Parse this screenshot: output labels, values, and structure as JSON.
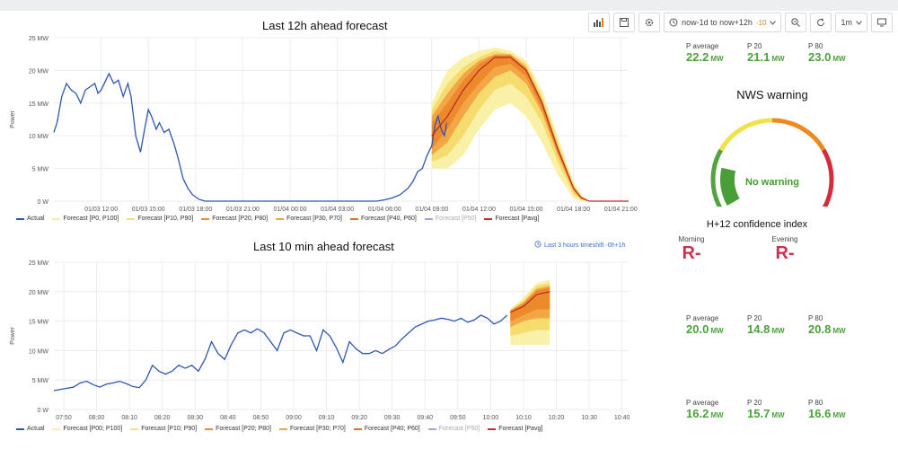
{
  "toolbar": {
    "time_range": "now-1d to now+12h",
    "time_range_badge": "-10",
    "refresh_interval": "1m"
  },
  "legend": [
    {
      "label": "Actual",
      "color": "#2f56b0",
      "faded": false
    },
    {
      "label": "Forecast [P0, P100]",
      "color": "#f7f0a0",
      "faded": false
    },
    {
      "label": "Forecast [P10, P90]",
      "color": "#f5e07a",
      "faded": false
    },
    {
      "label": "Forecast [P20, P80]",
      "color": "#f08a2a",
      "faded": false
    },
    {
      "label": "Forecast [P30, P70]",
      "color": "#f2a444",
      "faded": false
    },
    {
      "label": "Forecast [P40, P60]",
      "color": "#e6701e",
      "faded": false
    },
    {
      "label": "Forecast [P50]",
      "color": "#b89ad8",
      "faded": true
    },
    {
      "label": "Forecast [Pavg]",
      "color": "#cc2a2a",
      "faded": false
    }
  ],
  "legend_bottom": [
    {
      "label": "Actual",
      "color": "#2f56b0",
      "faded": false
    },
    {
      "label": "Forecast [P00; P100]",
      "color": "#f7f0a0",
      "faded": false
    },
    {
      "label": "Forecast [P10; P90]",
      "color": "#f5e07a",
      "faded": false
    },
    {
      "label": "Forecast [P20; P80]",
      "color": "#f08a2a",
      "faded": false
    },
    {
      "label": "Forecast [P30; P70]",
      "color": "#f2a444",
      "faded": false
    },
    {
      "label": "Forecast [P40; P60]",
      "color": "#e6701e",
      "faded": false
    },
    {
      "label": "Forecast [P50]",
      "color": "#b89ad8",
      "faded": true
    },
    {
      "label": "Forecast [Pavg]",
      "color": "#cc2a2a",
      "faded": false
    }
  ],
  "chart_data": [
    {
      "type": "area",
      "title": "Last 12h ahead forecast",
      "ylabel": "Power",
      "y_ticks": [
        "0 W",
        "5 MW",
        "10 MW",
        "15 MW",
        "20 MW",
        "25 MW"
      ],
      "ylim": [
        0,
        25
      ],
      "x_ticks": [
        "01/03 12:00",
        "01/03 15:00",
        "01/03 18:00",
        "01/03 21:00",
        "01/04 00:00",
        "01/04 03:00",
        "01/04 06:00",
        "01/04 09:00",
        "01/04 12:00",
        "01/04 15:00",
        "01/04 18:00",
        "01/04 21:00"
      ],
      "x_unit": "hours since 01/03 12:00",
      "xlim": [
        -3,
        33.5
      ],
      "actual": [
        [
          -3,
          10.5
        ],
        [
          -2.8,
          12
        ],
        [
          -2.5,
          16
        ],
        [
          -2.2,
          18
        ],
        [
          -1.9,
          17
        ],
        [
          -1.6,
          16.5
        ],
        [
          -1.3,
          15
        ],
        [
          -1,
          17
        ],
        [
          -0.7,
          17.5
        ],
        [
          -0.4,
          18
        ],
        [
          -0.2,
          16.5
        ],
        [
          0,
          17
        ],
        [
          0.2,
          18
        ],
        [
          0.5,
          19.5
        ],
        [
          0.8,
          18
        ],
        [
          1.1,
          18.5
        ],
        [
          1.4,
          16
        ],
        [
          1.7,
          18
        ],
        [
          1.9,
          16
        ],
        [
          2.2,
          10
        ],
        [
          2.5,
          7.5
        ],
        [
          2.8,
          11.5
        ],
        [
          3,
          14
        ],
        [
          3.2,
          13
        ],
        [
          3.5,
          11
        ],
        [
          3.7,
          12
        ],
        [
          4,
          10.5
        ],
        [
          4.3,
          11
        ],
        [
          4.6,
          9
        ],
        [
          4.9,
          6.5
        ],
        [
          5.2,
          3.5
        ],
        [
          5.5,
          2
        ],
        [
          5.8,
          1
        ],
        [
          6.2,
          0.3
        ],
        [
          6.6,
          0
        ],
        [
          9,
          0
        ],
        [
          12,
          0
        ],
        [
          15,
          0
        ],
        [
          17.5,
          0
        ],
        [
          18,
          0.2
        ],
        [
          18.5,
          0.5
        ],
        [
          19,
          1
        ],
        [
          19.5,
          2
        ],
        [
          19.8,
          3
        ],
        [
          20.1,
          4.5
        ],
        [
          20.4,
          5
        ],
        [
          20.7,
          7
        ],
        [
          21,
          8.5
        ],
        [
          21.2,
          11.5
        ],
        [
          21.4,
          13
        ],
        [
          21.6,
          11
        ],
        [
          21.8,
          10
        ],
        [
          21.95,
          12
        ]
      ],
      "forecast": {
        "x": [
          21,
          22,
          23,
          24,
          25,
          26,
          27,
          28,
          29,
          30,
          30.5,
          31,
          32,
          33.5
        ],
        "pavg": [
          10,
          13,
          17,
          20,
          22,
          22,
          20,
          15,
          8,
          2,
          0.5,
          0,
          0,
          0
        ],
        "p0": [
          5,
          5,
          7,
          11,
          14,
          15,
          13,
          9,
          4,
          0.5,
          0,
          0,
          0,
          0
        ],
        "p100": [
          15,
          20,
          22,
          23,
          23.5,
          23,
          21.5,
          17,
          10,
          3,
          1,
          0,
          0,
          0
        ],
        "p10": [
          6,
          7,
          10,
          14,
          17,
          18,
          16,
          12,
          6,
          1,
          0.2,
          0,
          0,
          0
        ],
        "p90": [
          14,
          18,
          20.5,
          22,
          23,
          22.5,
          21,
          16,
          9,
          2.5,
          0.8,
          0,
          0,
          0
        ],
        "p20": [
          7,
          9,
          13,
          16.5,
          19,
          20,
          18,
          13.5,
          7,
          1.5,
          0.3,
          0,
          0,
          0
        ],
        "p80": [
          13,
          16.5,
          19.5,
          21.5,
          22.5,
          22.5,
          20.5,
          15.5,
          8.5,
          2.2,
          0.6,
          0,
          0,
          0
        ],
        "p30": [
          8,
          11,
          15,
          18,
          20.5,
          21,
          19,
          14,
          7.5,
          1.8,
          0.4,
          0,
          0,
          0
        ],
        "p70": [
          12,
          15,
          18.5,
          21,
          22.3,
          22.3,
          20.3,
          15.3,
          8.3,
          2.1,
          0.55,
          0,
          0,
          0
        ]
      }
    },
    {
      "type": "area",
      "title": "Last 10 min ahead forecast",
      "timeshift_label": "Last 3 hours timeshift -0h+1h",
      "ylabel": "Power",
      "y_ticks": [
        "0 W",
        "5 MW",
        "10 MW",
        "15 MW",
        "20 MW",
        "25 MW"
      ],
      "ylim": [
        0,
        25
      ],
      "x_ticks": [
        "07:50",
        "08:00",
        "08:10",
        "08:20",
        "08:30",
        "08:40",
        "08:50",
        "09:00",
        "09:10",
        "09:20",
        "09:30",
        "09:40",
        "09:50",
        "10:00",
        "10:10",
        "10:20",
        "10:30",
        "10:40"
      ],
      "x_unit": "minutes since 07:50",
      "xlim": [
        0,
        175
      ],
      "actual": [
        [
          0,
          3.2
        ],
        [
          3,
          3.5
        ],
        [
          6,
          3.8
        ],
        [
          8,
          4.5
        ],
        [
          10,
          4.8
        ],
        [
          12,
          4.2
        ],
        [
          14,
          3.8
        ],
        [
          16,
          4.3
        ],
        [
          18,
          4.5
        ],
        [
          20,
          4.8
        ],
        [
          22,
          4.4
        ],
        [
          24,
          3.9
        ],
        [
          26,
          3.7
        ],
        [
          28,
          5
        ],
        [
          30,
          7.5
        ],
        [
          32,
          6.5
        ],
        [
          34,
          6
        ],
        [
          36,
          6.5
        ],
        [
          38,
          7.5
        ],
        [
          40,
          7
        ],
        [
          42,
          7.5
        ],
        [
          44,
          6.5
        ],
        [
          46,
          8.5
        ],
        [
          48,
          11.5
        ],
        [
          50,
          9.5
        ],
        [
          52,
          8.5
        ],
        [
          54,
          11
        ],
        [
          56,
          13
        ],
        [
          58,
          13.5
        ],
        [
          60,
          13
        ],
        [
          62,
          13.7
        ],
        [
          64,
          13
        ],
        [
          66,
          11.5
        ],
        [
          68,
          10
        ],
        [
          70,
          13
        ],
        [
          72,
          13.5
        ],
        [
          74,
          13
        ],
        [
          76,
          12.5
        ],
        [
          78,
          12.5
        ],
        [
          80,
          10
        ],
        [
          82,
          13.5
        ],
        [
          84,
          12.5
        ],
        [
          86,
          10.5
        ],
        [
          88,
          8
        ],
        [
          90,
          11.5
        ],
        [
          92,
          10.3
        ],
        [
          94,
          9.5
        ],
        [
          96,
          9.5
        ],
        [
          98,
          10
        ],
        [
          100,
          9.5
        ],
        [
          102,
          10.2
        ],
        [
          104,
          10.8
        ],
        [
          106,
          12
        ],
        [
          108,
          13
        ],
        [
          110,
          14
        ],
        [
          112,
          14.5
        ],
        [
          114,
          15
        ],
        [
          116,
          15.2
        ],
        [
          118,
          15.5
        ],
        [
          120,
          15.3
        ],
        [
          122,
          15
        ],
        [
          124,
          15.5
        ],
        [
          126,
          14.8
        ],
        [
          128,
          15.2
        ],
        [
          130,
          16
        ],
        [
          132,
          15.5
        ],
        [
          134,
          14.5
        ],
        [
          136,
          15
        ],
        [
          138,
          16
        ]
      ],
      "forecast": {
        "x": [
          139,
          143,
          147,
          151
        ],
        "pavg": [
          16.5,
          17.5,
          19.5,
          20
        ],
        "p0": [
          11,
          11,
          11,
          11
        ],
        "p100": [
          17,
          19,
          21.5,
          22
        ],
        "p10": [
          12.5,
          13,
          13.5,
          13.5
        ],
        "p90": [
          17,
          18.5,
          21,
          21.5
        ],
        "p20": [
          14,
          15,
          15.5,
          15.5
        ],
        "p80": [
          16.8,
          18.2,
          20.5,
          21
        ],
        "p30": [
          15,
          16,
          17,
          17
        ],
        "p70": [
          16.7,
          18,
          20.2,
          20.7
        ]
      }
    }
  ],
  "stats_top": [
    {
      "label": "P average",
      "value": "22.2",
      "unit": "MW"
    },
    {
      "label": "P 20",
      "value": "21.1",
      "unit": "MW"
    },
    {
      "label": "P 80",
      "value": "23.0",
      "unit": "MW"
    }
  ],
  "gauge": {
    "title": "NWS warning",
    "status": "No warning",
    "level": 0.18,
    "colors": [
      "#53a33f",
      "#f2e24a",
      "#eb8a1e",
      "#d32c3c"
    ]
  },
  "confidence": {
    "title": "H+12 confidence index",
    "morning_label": "Morning",
    "morning_value": "R-",
    "evening_label": "Evening",
    "evening_value": "R-"
  },
  "stats_mid": [
    {
      "label": "P average",
      "value": "20.0",
      "unit": "MW"
    },
    {
      "label": "P 20",
      "value": "14.8",
      "unit": "MW"
    },
    {
      "label": "P 80",
      "value": "20.8",
      "unit": "MW"
    }
  ],
  "stats_bottom": [
    {
      "label": "P average",
      "value": "16.2",
      "unit": "MW"
    },
    {
      "label": "P 20",
      "value": "15.7",
      "unit": "MW"
    },
    {
      "label": "P 80",
      "value": "16.6",
      "unit": "MW"
    }
  ]
}
